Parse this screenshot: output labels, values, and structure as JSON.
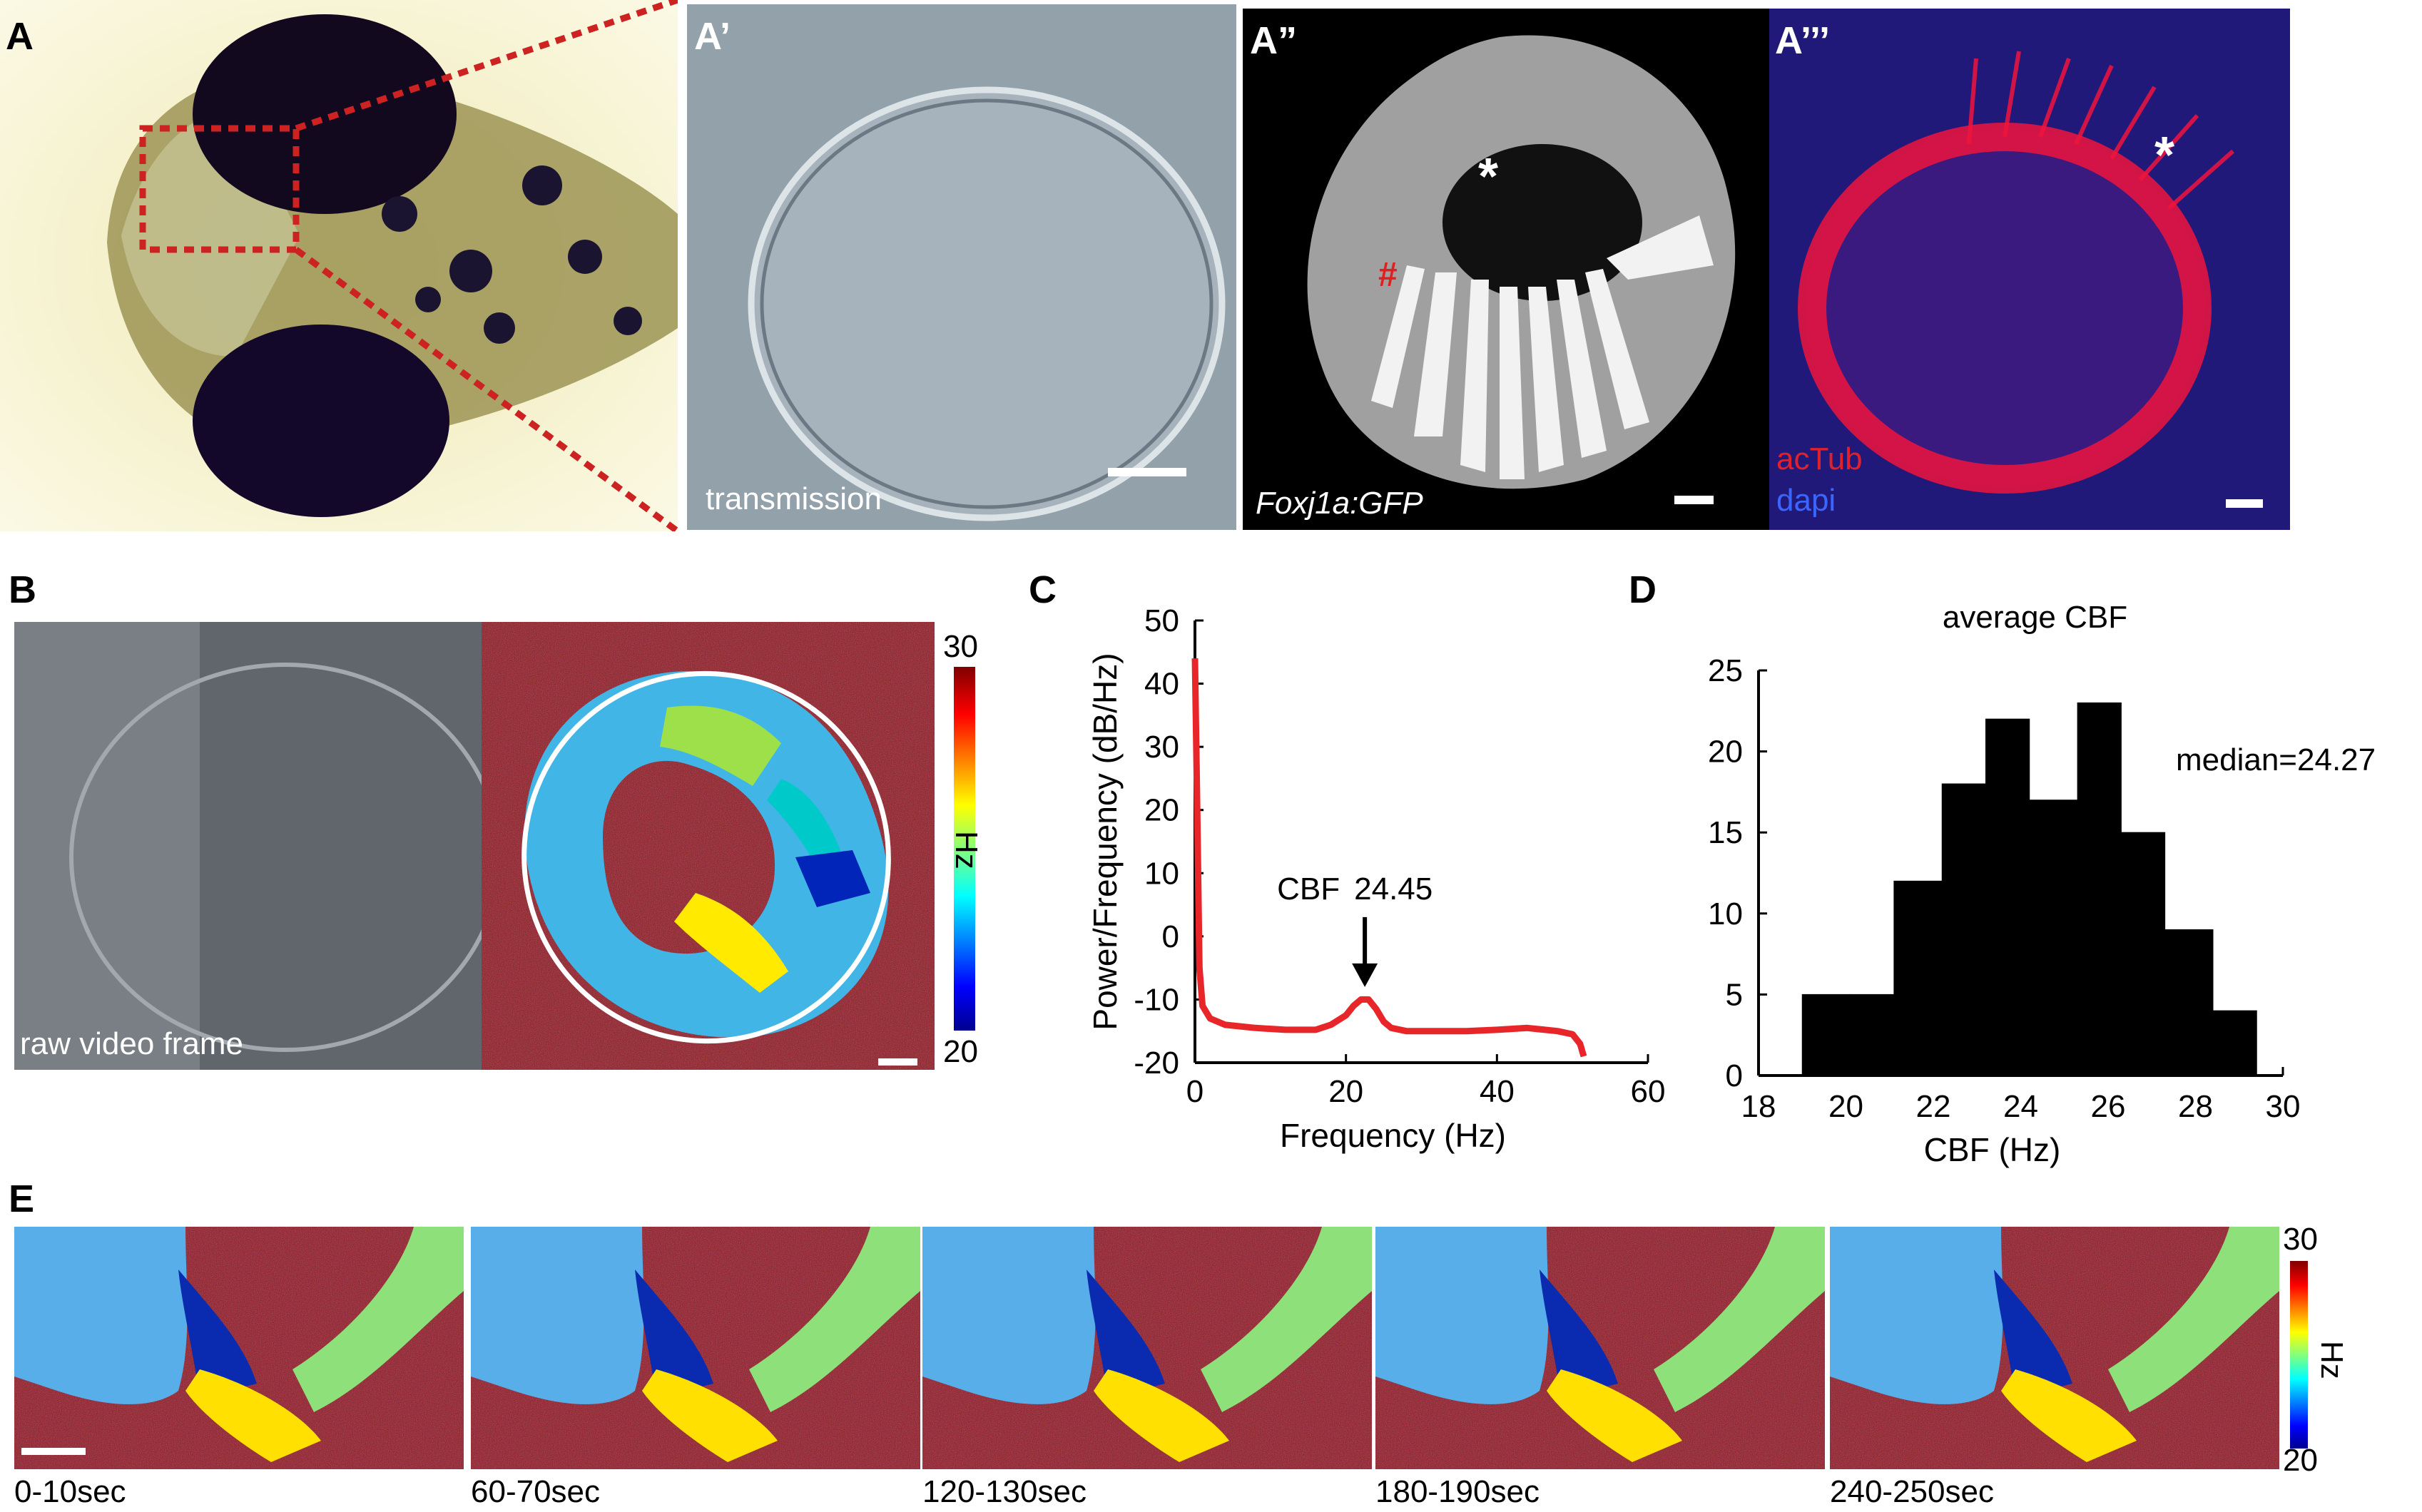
{
  "panel_labels": {
    "a": "A",
    "a1": "A’",
    "a2": "A”",
    "a3": "A’’’",
    "b": "B",
    "c": "C",
    "d": "D",
    "e": "E"
  },
  "panel_a1": {
    "caption": "transmission"
  },
  "panel_a2": {
    "caption": "Foxj1a:GFP",
    "star": "*",
    "hash": "#"
  },
  "panel_a3": {
    "label_red": "acTub",
    "label_blue": "dapi",
    "star": "*"
  },
  "panel_b": {
    "caption": "raw video frame",
    "colorbar_max": "30",
    "colorbar_min": "20",
    "colorbar_unit": "Hz"
  },
  "panel_e": {
    "timepoints": [
      "0-10sec",
      "60-70sec",
      "120-130sec",
      "180-190sec",
      "240-250sec"
    ],
    "colorbar_max": "30",
    "colorbar_min": "20",
    "colorbar_unit": "Hz"
  },
  "colors": {
    "series_red": "#e8262a",
    "dotted_red": "#cc2222",
    "hist_black": "#000000"
  },
  "chart_data": [
    {
      "id": "C",
      "type": "line",
      "title": "",
      "xlabel": "Frequency (Hz)",
      "ylabel": "Power/Frequency (dB/Hz)",
      "xlim": [
        0,
        60
      ],
      "ylim": [
        -20,
        50
      ],
      "xticks": [
        0,
        20,
        40,
        60
      ],
      "yticks": [
        50,
        40,
        30,
        20,
        10,
        0,
        -10,
        -20
      ],
      "annotation": {
        "label": "CBF",
        "value": "24.45",
        "x": 22.5,
        "y": -10.5
      },
      "series": [
        {
          "color": "#e8262a",
          "x": [
            0,
            0.3,
            0.6,
            1,
            2,
            4,
            8,
            12,
            16,
            18,
            20,
            21,
            22,
            23,
            24,
            25,
            26,
            28,
            32,
            36,
            40,
            44,
            48,
            50,
            51,
            51.5
          ],
          "y": [
            44,
            20,
            -5,
            -11,
            -13,
            -14,
            -14.5,
            -14.8,
            -14.8,
            -14,
            -12.5,
            -11,
            -10,
            -10,
            -11.5,
            -13.5,
            -14.5,
            -15,
            -15,
            -15,
            -14.8,
            -14.5,
            -15,
            -15.5,
            -17,
            -19
          ]
        }
      ]
    },
    {
      "id": "D",
      "type": "bar",
      "title": "average CBF",
      "xlabel": "CBF (Hz)",
      "ylabel": "",
      "xlim": [
        18,
        30
      ],
      "ylim": [
        0,
        25
      ],
      "xticks": [
        18,
        20,
        22,
        24,
        26,
        28,
        30
      ],
      "yticks": [
        0,
        5,
        10,
        15,
        20,
        25
      ],
      "annotation": "median=24.27",
      "bins": [
        [
          19,
          20.1
        ],
        [
          20.1,
          21.1
        ],
        [
          21.1,
          22.2
        ],
        [
          22.2,
          23.2
        ],
        [
          23.2,
          24.2
        ],
        [
          24.2,
          25.3
        ],
        [
          25.3,
          26.3
        ],
        [
          26.3,
          27.3
        ],
        [
          27.3,
          28.4
        ],
        [
          28.4,
          29.4
        ]
      ],
      "values": [
        5,
        5,
        12,
        18,
        22,
        17,
        23,
        15,
        9,
        4
      ]
    }
  ]
}
